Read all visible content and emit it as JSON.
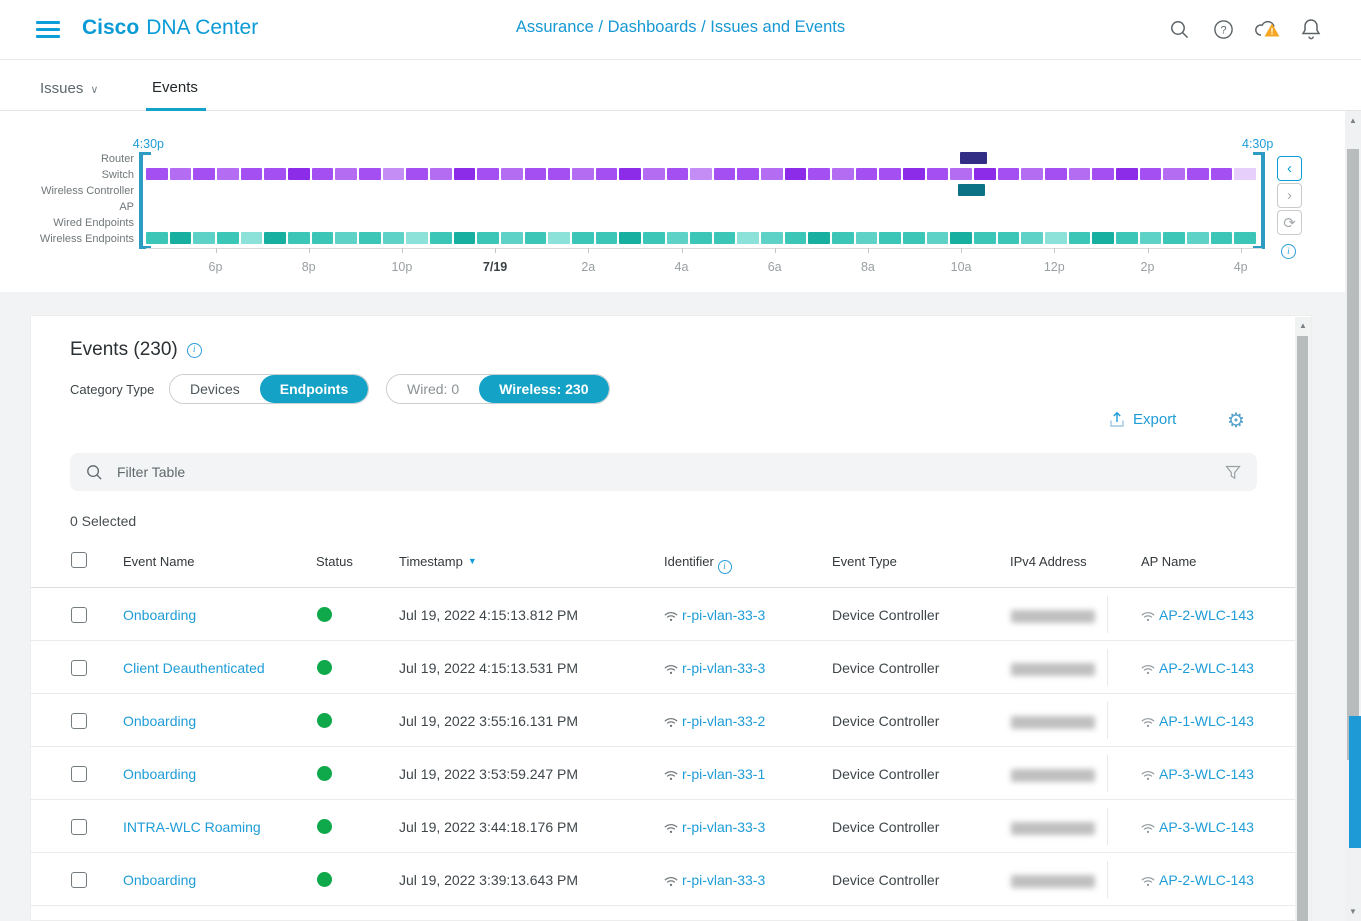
{
  "header": {
    "brand_bold": "Cisco",
    "brand_rest": "DNA Center",
    "breadcrumb": "Assurance / Dashboards / Issues and Events"
  },
  "tabs": {
    "issues_label": "Issues",
    "events_label": "Events"
  },
  "icons": {
    "gear": "⚙",
    "refresh": "⟳",
    "chevron_left": "‹",
    "chevron_right": "›",
    "chevron_down": "∨",
    "sort_desc": "▼",
    "up_arrow": "▲",
    "down_arrow": "▼",
    "info": "i",
    "warning": "!"
  },
  "colors": {
    "accent_blue": "#0d9dd9",
    "link_blue": "#1e9cd7",
    "teal_button": "#14a2c6",
    "status_green": "#0fa84a",
    "warning_orange": "#f5a623",
    "scroll_highlight": "#1e9ad6",
    "router_segment": "#322e86",
    "wlc_segment": "#0b7285"
  },
  "chart_data": {
    "type": "heatmap",
    "title": "Issues and Events timeline by category",
    "window_start_label": "4:30p",
    "window_end_label": "4:30p",
    "categories": [
      "Router",
      "Switch",
      "Wireless Controller",
      "AP",
      "Wired Endpoints",
      "Wireless Endpoints"
    ],
    "x_ticks": [
      "6p",
      "8p",
      "10p",
      "7/19",
      "2a",
      "4a",
      "6a",
      "8a",
      "10a",
      "12p",
      "2p",
      "4p"
    ],
    "bold_tick": "7/19",
    "slots": 47,
    "palettes": {
      "purple": [
        "#8c2be8",
        "#a44ff1",
        "#b46cf3",
        "#c48df5",
        "#e6d0fb"
      ],
      "teal": [
        "#17b0a0",
        "#3bc6b7",
        "#5ed2c6",
        "#8ce2d8",
        "#c0f0ea"
      ]
    },
    "series": [
      {
        "name": "Router",
        "kind": "single",
        "slot": 34.4,
        "color": "#322e86"
      },
      {
        "name": "Switch",
        "kind": "segments",
        "palette": "purple",
        "shades": [
          1,
          2,
          1,
          2,
          1,
          1,
          0,
          1,
          2,
          1,
          3,
          1,
          2,
          0,
          1,
          2,
          1,
          1,
          2,
          1,
          0,
          2,
          1,
          3,
          1,
          1,
          2,
          0,
          1,
          2,
          1,
          1,
          0,
          1,
          2,
          0,
          1,
          2,
          1,
          2,
          1,
          0,
          1,
          2,
          1,
          1,
          4
        ]
      },
      {
        "name": "Wireless Controller",
        "kind": "single",
        "slot": 34.3,
        "color": "#0b7285"
      },
      {
        "name": "AP",
        "kind": "empty"
      },
      {
        "name": "Wired Endpoints",
        "kind": "empty"
      },
      {
        "name": "Wireless Endpoints",
        "kind": "segments",
        "palette": "teal",
        "shades": [
          1,
          0,
          2,
          1,
          3,
          0,
          1,
          1,
          2,
          1,
          2,
          3,
          1,
          0,
          1,
          2,
          1,
          3,
          1,
          1,
          0,
          1,
          2,
          1,
          1,
          3,
          2,
          1,
          0,
          1,
          2,
          1,
          1,
          2,
          0,
          1,
          1,
          2,
          3,
          1,
          0,
          1,
          2,
          1,
          2,
          1,
          1
        ]
      }
    ]
  },
  "events_panel": {
    "title": "Events (230)",
    "category_type_label": "Category Type",
    "buttons": {
      "devices": "Devices",
      "endpoints": "Endpoints",
      "wired": "Wired: 0",
      "wireless": "Wireless: 230"
    },
    "export_label": "Export",
    "filter_placeholder": "Filter Table",
    "selected_text": "0 Selected",
    "columns": [
      "Event Name",
      "Status",
      "Timestamp",
      "Identifier",
      "Event Type",
      "IPv4 Address",
      "AP Name"
    ],
    "rows": [
      {
        "event": "Onboarding",
        "status": "green",
        "timestamp": "Jul 19, 2022 4:15:13.812 PM",
        "identifier": "r-pi-vlan-33-3",
        "event_type": "Device Controller",
        "ipv4_redacted": true,
        "ap_name": "AP-2-WLC-143"
      },
      {
        "event": "Client Deauthenticated",
        "status": "green",
        "timestamp": "Jul 19, 2022 4:15:13.531 PM",
        "identifier": "r-pi-vlan-33-3",
        "event_type": "Device Controller",
        "ipv4_redacted": true,
        "ap_name": "AP-2-WLC-143"
      },
      {
        "event": "Onboarding",
        "status": "green",
        "timestamp": "Jul 19, 2022 3:55:16.131 PM",
        "identifier": "r-pi-vlan-33-2",
        "event_type": "Device Controller",
        "ipv4_redacted": true,
        "ap_name": "AP-1-WLC-143"
      },
      {
        "event": "Onboarding",
        "status": "green",
        "timestamp": "Jul 19, 2022 3:53:59.247 PM",
        "identifier": "r-pi-vlan-33-1",
        "event_type": "Device Controller",
        "ipv4_redacted": true,
        "ap_name": "AP-3-WLC-143"
      },
      {
        "event": "INTRA-WLC Roaming",
        "status": "green",
        "timestamp": "Jul 19, 2022 3:44:18.176 PM",
        "identifier": "r-pi-vlan-33-3",
        "event_type": "Device Controller",
        "ipv4_redacted": true,
        "ap_name": "AP-3-WLC-143"
      },
      {
        "event": "Onboarding",
        "status": "green",
        "timestamp": "Jul 19, 2022 3:39:13.643 PM",
        "identifier": "r-pi-vlan-33-3",
        "event_type": "Device Controller",
        "ipv4_redacted": true,
        "ap_name": "AP-2-WLC-143"
      }
    ]
  }
}
